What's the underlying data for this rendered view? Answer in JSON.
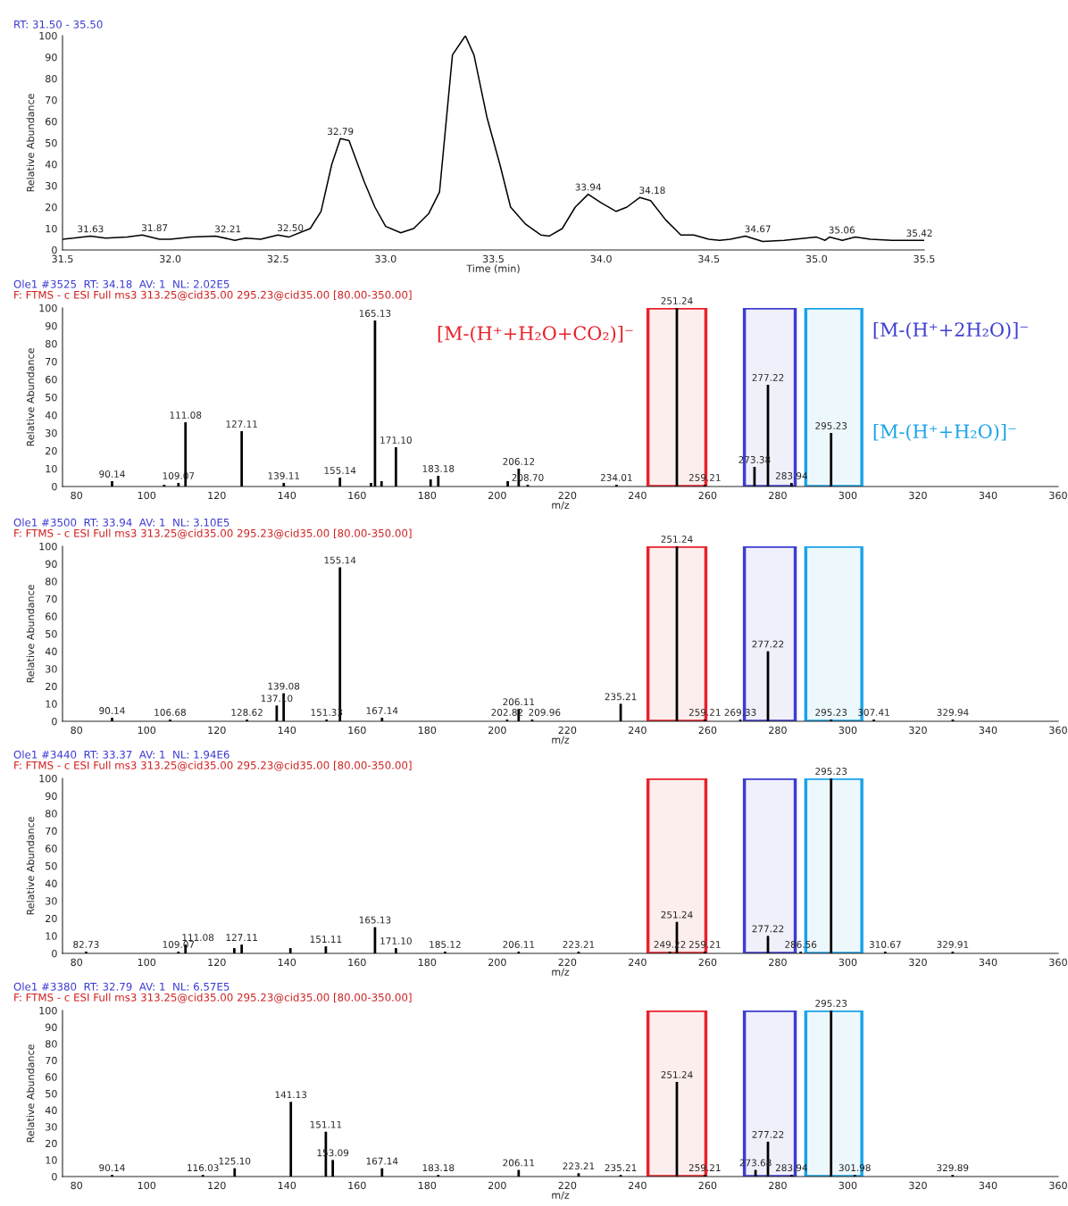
{
  "chart_data": [
    {
      "type": "line",
      "title": "RT: 31.50 - 35.50",
      "xlabel": "Time (min)",
      "ylabel": "Relative Abundance",
      "color": "#000000",
      "marker": "none",
      "line_style": "solid",
      "grid": false,
      "legend": false,
      "x": [
        31.5,
        31.55,
        31.63,
        31.7,
        31.8,
        31.87,
        31.95,
        32.0,
        32.1,
        32.21,
        32.3,
        32.35,
        32.42,
        32.5,
        32.55,
        32.65,
        32.7,
        32.75,
        32.79,
        32.83,
        32.9,
        32.95,
        33.0,
        33.07,
        33.13,
        33.2,
        33.25,
        33.31,
        33.37,
        33.41,
        33.47,
        33.53,
        33.58,
        33.65,
        33.72,
        33.76,
        33.82,
        33.88,
        33.94,
        34.0,
        34.07,
        34.12,
        34.18,
        34.23,
        34.3,
        34.37,
        34.43,
        34.5,
        34.55,
        34.6,
        34.67,
        34.75,
        34.85,
        34.95,
        35.0,
        35.04,
        35.06,
        35.12,
        35.18,
        35.25,
        35.35,
        35.42,
        35.5
      ],
      "values": [
        5,
        5.5,
        6.5,
        5.5,
        6,
        7,
        5,
        5,
        6,
        6.5,
        4.5,
        5.5,
        5,
        7,
        6,
        10,
        18,
        40,
        52,
        51,
        32,
        20,
        11,
        8,
        10,
        17,
        27,
        91,
        100,
        91,
        62,
        40,
        20,
        12,
        7,
        6.5,
        10,
        20,
        26,
        22,
        18,
        20,
        24.5,
        23,
        14,
        7,
        7,
        5,
        4.5,
        5,
        6.5,
        4,
        4.5,
        5.5,
        6,
        4.5,
        6,
        4.5,
        6,
        5,
        4.5,
        4.5,
        4.5
      ],
      "xlim": [
        31.5,
        35.5
      ],
      "xticks": [
        31.5,
        {
          "value": 32,
          "label": "32.0"
        },
        32.5,
        {
          "value": 33,
          "label": "33.0"
        },
        33.5,
        {
          "value": 34,
          "label": "34.0"
        },
        34.5,
        {
          "value": 35,
          "label": "35.0"
        },
        35.5
      ],
      "ylim": [
        0,
        100
      ],
      "yticks": [
        0,
        10,
        20,
        30,
        40,
        50,
        60,
        70,
        80,
        90,
        100
      ],
      "annotations": [
        {
          "text": "31.63",
          "x": 31.63,
          "y": 6.5
        },
        {
          "text": "31.87",
          "x": 31.87,
          "y": 7
        },
        {
          "text": "32.21",
          "x": 32.21,
          "y": 6.5
        },
        {
          "text": "32.50",
          "x": 32.5,
          "y": 7
        },
        {
          "text": "32.79",
          "x": 32.79,
          "y": 52
        },
        {
          "text": "33.94",
          "x": 33.94,
          "y": 26
        },
        {
          "text": "34.18",
          "x": 34.18,
          "y": 24.5
        },
        {
          "text": "34.67",
          "x": 34.67,
          "y": 6.5
        },
        {
          "text": "35.06",
          "x": 35.06,
          "y": 6
        },
        {
          "text": "35.42",
          "x": 35.42,
          "y": 4.5
        }
      ]
    },
    {
      "type": "bar",
      "title": "Ole1 #3525  RT: 34.18  AV: 1  NL: 2.02E5",
      "subtitle": "F: FTMS - c ESI Full ms3 313.25@cid35.00 295.23@cid35.00 [80.00-350.00]",
      "xlabel": "m/z",
      "ylabel": "Relative Abundance",
      "color": "#000000",
      "grid": false,
      "legend": false,
      "x": [
        90.14,
        105,
        109.07,
        111.08,
        127.11,
        139.11,
        155.14,
        164,
        165.13,
        167,
        171.1,
        181,
        183.18,
        203,
        206.12,
        208.7,
        234.01,
        251.24,
        259.21,
        273.38,
        277.22,
        283.94,
        295.23
      ],
      "values": [
        3,
        1,
        2,
        36,
        31,
        2,
        5,
        2,
        93,
        3,
        22,
        4,
        6,
        3,
        10,
        1,
        1,
        100,
        1,
        11,
        57,
        2,
        30
      ],
      "xlim": [
        76,
        360
      ],
      "xticks": [
        80,
        100,
        120,
        140,
        160,
        180,
        200,
        220,
        240,
        260,
        280,
        300,
        320,
        340,
        360
      ],
      "ylim": [
        0,
        100
      ],
      "yticks": [
        0,
        10,
        20,
        30,
        40,
        50,
        60,
        70,
        80,
        90,
        100
      ],
      "bands": [
        {
          "axis": "x",
          "from": 243,
          "to": 259.5,
          "color": "#e8212a",
          "label": "[M-(H⁺+H₂O+CO₂)]⁻"
        },
        {
          "axis": "x",
          "from": 270.5,
          "to": 285,
          "color": "#3d3dd1",
          "label": "[M-(H⁺+2H₂O)]⁻"
        },
        {
          "axis": "x",
          "from": 288,
          "to": 304,
          "color": "#1aa3e8",
          "label": "[M-(H⁺+H₂O)]⁻"
        }
      ],
      "annotations": [
        {
          "text": "90.14",
          "x": 90.14,
          "y": 3
        },
        {
          "text": "109.07",
          "x": 109.07,
          "y": 2
        },
        {
          "text": "111.08",
          "x": 111.08,
          "y": 36
        },
        {
          "text": "127.11",
          "x": 127.11,
          "y": 31
        },
        {
          "text": "139.11",
          "x": 139.11,
          "y": 2
        },
        {
          "text": "155.14",
          "x": 155.14,
          "y": 5
        },
        {
          "text": "165.13",
          "x": 165.13,
          "y": 93
        },
        {
          "text": "171.10",
          "x": 171.1,
          "y": 22
        },
        {
          "text": "183.18",
          "x": 183.18,
          "y": 6
        },
        {
          "text": "206.12",
          "x": 206.12,
          "y": 10
        },
        {
          "text": "208.70",
          "x": 208.7,
          "y": 1
        },
        {
          "text": "234.01",
          "x": 234.01,
          "y": 1
        },
        {
          "text": "251.24",
          "x": 251.24,
          "y": 100
        },
        {
          "text": "259.21",
          "x": 259.21,
          "y": 1
        },
        {
          "text": "273.38",
          "x": 273.38,
          "y": 11
        },
        {
          "text": "277.22",
          "x": 277.22,
          "y": 57
        },
        {
          "text": "283.94",
          "x": 283.94,
          "y": 2
        },
        {
          "text": "295.23",
          "x": 295.23,
          "y": 30
        }
      ]
    },
    {
      "type": "bar",
      "title": "Ole1 #3500  RT: 33.94  AV: 1  NL: 3.10E5",
      "subtitle": "F: FTMS - c ESI Full ms3 313.25@cid35.00 295.23@cid35.00 [80.00-350.00]",
      "xlabel": "m/z",
      "ylabel": "Relative Abundance",
      "color": "#000000",
      "grid": false,
      "legend": false,
      "x": [
        90.14,
        106.68,
        128.62,
        137.1,
        139.08,
        151.33,
        155.14,
        167.14,
        202.82,
        206.11,
        209.96,
        235.21,
        251.24,
        259.21,
        269.33,
        277.22,
        295.23,
        307.41,
        329.94
      ],
      "values": [
        2,
        1,
        1,
        9,
        16,
        1,
        88,
        2,
        1,
        7,
        1,
        10,
        100,
        1,
        1,
        40,
        1,
        1,
        1
      ],
      "xlim": [
        76,
        360
      ],
      "xticks": [
        80,
        100,
        120,
        140,
        160,
        180,
        200,
        220,
        240,
        260,
        280,
        300,
        320,
        340,
        360
      ],
      "ylim": [
        0,
        100
      ],
      "yticks": [
        0,
        10,
        20,
        30,
        40,
        50,
        60,
        70,
        80,
        90,
        100
      ],
      "bands": [
        {
          "axis": "x",
          "from": 243,
          "to": 259.5,
          "color": "#e8212a"
        },
        {
          "axis": "x",
          "from": 270.5,
          "to": 285,
          "color": "#3d3dd1"
        },
        {
          "axis": "x",
          "from": 288,
          "to": 304,
          "color": "#1aa3e8"
        }
      ],
      "annotations": [
        {
          "text": "90.14",
          "x": 90.14,
          "y": 2
        },
        {
          "text": "106.68",
          "x": 106.68,
          "y": 1
        },
        {
          "text": "128.62",
          "x": 128.62,
          "y": 1
        },
        {
          "text": "137.10",
          "x": 137.1,
          "y": 9
        },
        {
          "text": "139.08",
          "x": 139.08,
          "y": 16
        },
        {
          "text": "151.33",
          "x": 151.33,
          "y": 1
        },
        {
          "text": "155.14",
          "x": 155.14,
          "y": 88
        },
        {
          "text": "167.14",
          "x": 167.14,
          "y": 2
        },
        {
          "text": "202.82",
          "x": 202.82,
          "y": 1
        },
        {
          "text": "206.11",
          "x": 206.11,
          "y": 7
        },
        {
          "text": "209.96",
          "x": 209.96,
          "y": 1
        },
        {
          "text": "235.21",
          "x": 235.21,
          "y": 10
        },
        {
          "text": "251.24",
          "x": 251.24,
          "y": 100
        },
        {
          "text": "259.21",
          "x": 259.21,
          "y": 1
        },
        {
          "text": "269.33",
          "x": 269.33,
          "y": 1
        },
        {
          "text": "277.22",
          "x": 277.22,
          "y": 40
        },
        {
          "text": "295.23",
          "x": 295.23,
          "y": 1
        },
        {
          "text": "307.41",
          "x": 307.41,
          "y": 1
        },
        {
          "text": "329.94",
          "x": 329.94,
          "y": 1
        }
      ]
    },
    {
      "type": "bar",
      "title": "Ole1 #3440  RT: 33.37  AV: 1  NL: 1.94E6",
      "subtitle": "F: FTMS - c ESI Full ms3 313.25@cid35.00 295.23@cid35.00 [80.00-350.00]",
      "xlabel": "m/z",
      "ylabel": "Relative Abundance",
      "color": "#000000",
      "grid": false,
      "legend": false,
      "x": [
        82.73,
        109.07,
        111.08,
        125,
        127.11,
        141,
        151.11,
        165.13,
        171.1,
        185.12,
        206.11,
        223.21,
        249.22,
        251.24,
        259.21,
        277.22,
        286.56,
        295.23,
        310.67,
        329.91
      ],
      "values": [
        1,
        1,
        5,
        3,
        5,
        3,
        4,
        15,
        3,
        1,
        1,
        1,
        1,
        18,
        1,
        10,
        1,
        100,
        1,
        1
      ],
      "xlim": [
        76,
        360
      ],
      "xticks": [
        80,
        100,
        120,
        140,
        160,
        180,
        200,
        220,
        240,
        260,
        280,
        300,
        320,
        340,
        360
      ],
      "ylim": [
        0,
        100
      ],
      "yticks": [
        0,
        10,
        20,
        30,
        40,
        50,
        60,
        70,
        80,
        90,
        100
      ],
      "bands": [
        {
          "axis": "x",
          "from": 243,
          "to": 259.5,
          "color": "#e8212a"
        },
        {
          "axis": "x",
          "from": 270.5,
          "to": 285,
          "color": "#3d3dd1"
        },
        {
          "axis": "x",
          "from": 288,
          "to": 304,
          "color": "#1aa3e8"
        }
      ],
      "annotations": [
        {
          "text": "82.73",
          "x": 82.73,
          "y": 1
        },
        {
          "text": "109.07",
          "x": 109.07,
          "y": 1
        },
        {
          "text": "111.08",
          "x": 111.08,
          "y": 5
        },
        {
          "text": "127.11",
          "x": 127.11,
          "y": 5
        },
        {
          "text": "151.11",
          "x": 151.11,
          "y": 4
        },
        {
          "text": "165.13",
          "x": 165.13,
          "y": 15
        },
        {
          "text": "171.10",
          "x": 171.1,
          "y": 3
        },
        {
          "text": "185.12",
          "x": 185.12,
          "y": 1
        },
        {
          "text": "206.11",
          "x": 206.11,
          "y": 1
        },
        {
          "text": "223.21",
          "x": 223.21,
          "y": 1
        },
        {
          "text": "249.22",
          "x": 249.22,
          "y": 1
        },
        {
          "text": "251.24",
          "x": 251.24,
          "y": 18
        },
        {
          "text": "259.21",
          "x": 259.21,
          "y": 1
        },
        {
          "text": "277.22",
          "x": 277.22,
          "y": 10
        },
        {
          "text": "286.56",
          "x": 286.56,
          "y": 1
        },
        {
          "text": "295.23",
          "x": 295.23,
          "y": 100
        },
        {
          "text": "310.67",
          "x": 310.67,
          "y": 1
        },
        {
          "text": "329.91",
          "x": 329.91,
          "y": 1
        }
      ]
    },
    {
      "type": "bar",
      "title": "Ole1 #3380  RT: 32.79  AV: 1  NL: 6.57E5",
      "subtitle": "F: FTMS - c ESI Full ms3 313.25@cid35.00 295.23@cid35.00 [80.00-350.00]",
      "xlabel": "m/z",
      "ylabel": "Relative Abundance",
      "color": "#000000",
      "grid": false,
      "legend": false,
      "x": [
        90.14,
        116.03,
        125.1,
        141.13,
        151.11,
        153.09,
        167.14,
        183.18,
        206.11,
        223.21,
        235.21,
        251.24,
        259.21,
        273.68,
        277.22,
        283.94,
        295.23,
        301.98,
        329.89
      ],
      "values": [
        1,
        1,
        5,
        45,
        27,
        10,
        5,
        1,
        4,
        2,
        1,
        57,
        1,
        4,
        21,
        1,
        100,
        1,
        1
      ],
      "xlim": [
        76,
        360
      ],
      "xticks": [
        80,
        100,
        120,
        140,
        160,
        180,
        200,
        220,
        240,
        260,
        280,
        300,
        320,
        340,
        360
      ],
      "ylim": [
        0,
        100
      ],
      "yticks": [
        0,
        10,
        20,
        30,
        40,
        50,
        60,
        70,
        80,
        90,
        100
      ],
      "bands": [
        {
          "axis": "x",
          "from": 243,
          "to": 259.5,
          "color": "#e8212a"
        },
        {
          "axis": "x",
          "from": 270.5,
          "to": 285,
          "color": "#3d3dd1"
        },
        {
          "axis": "x",
          "from": 288,
          "to": 304,
          "color": "#1aa3e8"
        }
      ],
      "annotations": [
        {
          "text": "90.14",
          "x": 90.14,
          "y": 1
        },
        {
          "text": "116.03",
          "x": 116.03,
          "y": 1
        },
        {
          "text": "125.10",
          "x": 125.1,
          "y": 5
        },
        {
          "text": "141.13",
          "x": 141.13,
          "y": 45
        },
        {
          "text": "151.11",
          "x": 151.11,
          "y": 27
        },
        {
          "text": "153.09",
          "x": 153.09,
          "y": 10
        },
        {
          "text": "167.14",
          "x": 167.14,
          "y": 5
        },
        {
          "text": "183.18",
          "x": 183.18,
          "y": 1
        },
        {
          "text": "206.11",
          "x": 206.11,
          "y": 4
        },
        {
          "text": "223.21",
          "x": 223.21,
          "y": 2
        },
        {
          "text": "235.21",
          "x": 235.21,
          "y": 1
        },
        {
          "text": "251.24",
          "x": 251.24,
          "y": 57
        },
        {
          "text": "259.21",
          "x": 259.21,
          "y": 1
        },
        {
          "text": "273.68",
          "x": 273.68,
          "y": 4
        },
        {
          "text": "277.22",
          "x": 277.22,
          "y": 21
        },
        {
          "text": "283.94",
          "x": 283.94,
          "y": 1
        },
        {
          "text": "295.23",
          "x": 295.23,
          "y": 100
        },
        {
          "text": "301.98",
          "x": 301.98,
          "y": 1
        },
        {
          "text": "329.89",
          "x": 329.89,
          "y": 1
        }
      ]
    }
  ]
}
